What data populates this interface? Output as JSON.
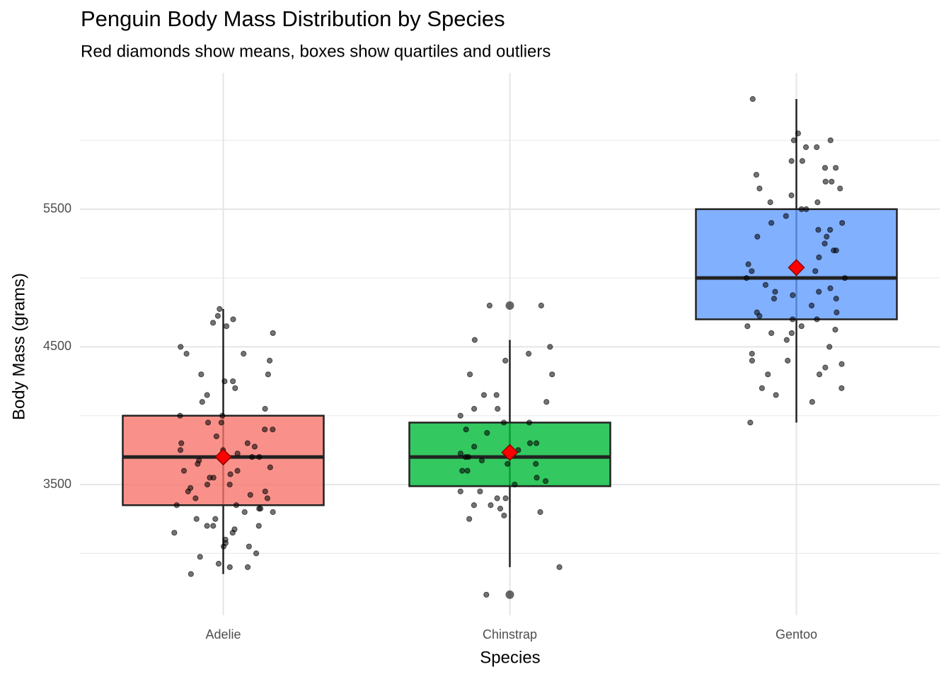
{
  "chart_data": {
    "type": "box",
    "title": "Penguin Body Mass Distribution by Species",
    "subtitle": "Red diamonds show means, boxes show quartiles and outliers",
    "x_label": "Species",
    "y_label": "Body Mass (grams)",
    "categories": [
      "Adelie",
      "Chinstrap",
      "Gentoo"
    ],
    "ylim": [
      2550,
      6490
    ],
    "yticks": [
      3500,
      4500,
      5500
    ],
    "minor_yticks": [
      3000,
      4000,
      5000,
      6000
    ],
    "grid": true,
    "mean_color": "#ff0000",
    "point_color": "#000000",
    "boxes": [
      {
        "color": "#F8766D",
        "whisker_low": 2850,
        "q1": 3350,
        "median": 3700,
        "q3": 4000,
        "whisker_high": 4775,
        "mean": 3700,
        "outliers": [],
        "points": [
          2850,
          2900,
          2900,
          2925,
          2975,
          3000,
          3050,
          3050,
          3075,
          3100,
          3150,
          3150,
          3175,
          3200,
          3200,
          3200,
          3250,
          3250,
          3300,
          3300,
          3325,
          3325,
          3350,
          3350,
          3400,
          3400,
          3425,
          3450,
          3450,
          3475,
          3500,
          3500,
          3550,
          3550,
          3575,
          3600,
          3600,
          3625,
          3650,
          3675,
          3700,
          3700,
          3725,
          3750,
          3750,
          3775,
          3800,
          3800,
          3850,
          3900,
          3900,
          3950,
          3950,
          4000,
          4000,
          4050,
          4100,
          4150,
          4200,
          4250,
          4250,
          4300,
          4300,
          4400,
          4450,
          4450,
          4500,
          4600,
          4650,
          4675,
          4700,
          4725,
          4775
        ]
      },
      {
        "color": "#00BA38",
        "whisker_low": 2900,
        "q1": 3488,
        "median": 3700,
        "q3": 3950,
        "whisker_high": 4550,
        "mean": 3733,
        "outliers": [
          4800,
          2700
        ],
        "points": [
          2700,
          2900,
          3250,
          3275,
          3300,
          3325,
          3350,
          3350,
          3400,
          3400,
          3450,
          3450,
          3500,
          3525,
          3550,
          3600,
          3600,
          3650,
          3650,
          3675,
          3700,
          3700,
          3725,
          3750,
          3775,
          3800,
          3800,
          3875,
          3900,
          3950,
          3950,
          4000,
          4050,
          4050,
          4100,
          4150,
          4150,
          4300,
          4300,
          4400,
          4450,
          4500,
          4550,
          4800,
          4800
        ]
      },
      {
        "color": "#619CFF",
        "whisker_low": 3950,
        "q1": 4700,
        "median": 5000,
        "q3": 5500,
        "whisker_high": 6300,
        "mean": 5076,
        "outliers": [],
        "points": [
          3950,
          4100,
          4150,
          4200,
          4200,
          4300,
          4300,
          4350,
          4375,
          4400,
          4400,
          4450,
          4500,
          4550,
          4600,
          4600,
          4625,
          4650,
          4650,
          4700,
          4700,
          4725,
          4750,
          4750,
          4800,
          4850,
          4850,
          4875,
          4900,
          4900,
          4925,
          4950,
          5000,
          5000,
          5050,
          5050,
          5100,
          5100,
          5150,
          5200,
          5200,
          5250,
          5300,
          5300,
          5350,
          5350,
          5400,
          5400,
          5450,
          5500,
          5500,
          5550,
          5550,
          5600,
          5650,
          5650,
          5700,
          5700,
          5750,
          5800,
          5800,
          5850,
          5850,
          5950,
          5950,
          6000,
          6000,
          6050,
          6300
        ]
      }
    ]
  }
}
